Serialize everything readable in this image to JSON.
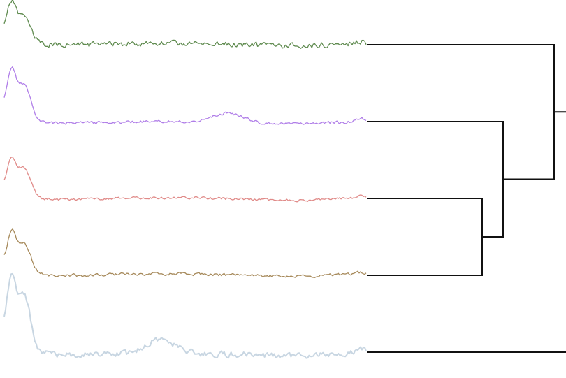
{
  "diagram": {
    "type": "dendrogram-with-profiles",
    "orientation": "leaves-left-root-right",
    "link_color": "#111111",
    "profiles": [
      {
        "color": "#5e8a4e",
        "seed": 11,
        "noise": 2.4,
        "shape": "peak-drop-flat-rise",
        "peak_heights": [
          0.95,
          0.75
        ],
        "mid_bumps": []
      },
      {
        "color": "#b07ee8",
        "seed": 23,
        "noise": 1.2,
        "shape": "peak-drop-flat-rise",
        "peak_heights": [
          1.0,
          0.82
        ],
        "mid_bumps": [
          0.62
        ]
      },
      {
        "color": "#e08a88",
        "seed": 37,
        "noise": 1.1,
        "shape": "peak-drop-flat-rise",
        "peak_heights": [
          0.9,
          0.85
        ],
        "mid_bumps": []
      },
      {
        "color": "#a6895a",
        "seed": 41,
        "noise": 1.3,
        "shape": "peak-drop-flat-rise",
        "peak_heights": [
          0.95,
          0.85
        ],
        "mid_bumps": []
      },
      {
        "color": "#c8d6e2",
        "seed": 59,
        "noise": 2.6,
        "shape": "peak-drop-flat-rise",
        "peak_heights": [
          1.0,
          0.85
        ],
        "mid_bumps": [
          0.43
        ]
      }
    ],
    "clusters": [
      {
        "name": "merge-3-4",
        "children": [
          "leaf-3",
          "leaf-4"
        ]
      },
      {
        "name": "merge-2-34",
        "children": [
          "leaf-2",
          "merge-3-4"
        ]
      },
      {
        "name": "merge-1-234",
        "children": [
          "leaf-1",
          "merge-2-34"
        ]
      }
    ]
  }
}
